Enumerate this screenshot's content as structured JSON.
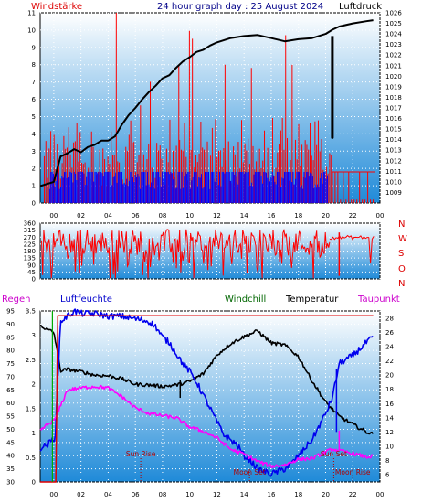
{
  "header": {
    "wind_label": "Windstärke",
    "title": "24 hour graph day : 25 August 2024",
    "pressure_label": "Luftdruck"
  },
  "direction_letters": [
    "N",
    "W",
    "S",
    "O",
    "N"
  ],
  "bottom_header": {
    "rain": "Regen",
    "humidity": "Luftfeuchte",
    "windchill": "Windchill",
    "temperature": "Temperatur",
    "dewpoint": "Taupunkt"
  },
  "events": [
    {
      "label": "Sun Rise",
      "hour": 6.4,
      "row": "upper"
    },
    {
      "label": "Moon Set",
      "hour": 14.4,
      "row": "lower"
    },
    {
      "label": "Sun Set",
      "hour": 20.6,
      "row": "upper"
    },
    {
      "label": "Moon Rise",
      "hour": 22.0,
      "row": "lower"
    }
  ],
  "colors": {
    "wind": "#ff0000",
    "wind_gust": "#0000ff",
    "pressure": "#000000",
    "direction": "#ff0000",
    "rain": "#e00000",
    "humidity": "#0000ee",
    "windchill": "#006600",
    "temperature": "#000000",
    "dewpoint": "#ff00ff",
    "plot_top": "#ffffff",
    "plot_bottom": "#1f8ad8"
  },
  "chart_data": [
    {
      "type": "line",
      "name": "wind-pressure",
      "x_ticks": [
        "00",
        "02",
        "04",
        "06",
        "08",
        "10",
        "12",
        "14",
        "16",
        "18",
        "20",
        "22",
        "00"
      ],
      "left_axis": {
        "label": "Windstärke",
        "min": 0,
        "max": 11,
        "ticks": [
          0,
          1,
          2,
          3,
          4,
          5,
          6,
          7,
          8,
          9,
          10,
          11
        ]
      },
      "right_axis": {
        "label": "Luftdruck",
        "min": 1008,
        "max": 1026,
        "ticks": [
          1009,
          1010,
          1011,
          1012,
          1013,
          1014,
          1015,
          1016,
          1017,
          1018,
          1019,
          1020,
          1021,
          1022,
          1023,
          1024,
          1025,
          1026
        ]
      },
      "series": [
        {
          "name": "Luftdruck",
          "axis": "right",
          "x": [
            -1,
            -0.5,
            0,
            0.5,
            1,
            1.5,
            2,
            2.5,
            3,
            3.5,
            4,
            4.5,
            5,
            5.5,
            6,
            6.5,
            7,
            7.5,
            8,
            8.5,
            9,
            9.5,
            10,
            10.5,
            11,
            11.5,
            12,
            13,
            14,
            15,
            16,
            17,
            18,
            19,
            20,
            20.5,
            21,
            22,
            23,
            23.5
          ],
          "y": [
            1009.6,
            1009.8,
            1010.0,
            1012.4,
            1012.7,
            1013.1,
            1012.8,
            1013.3,
            1013.5,
            1013.9,
            1013.9,
            1014.3,
            1015.4,
            1016.3,
            1017.0,
            1017.8,
            1018.5,
            1019.1,
            1019.8,
            1020.1,
            1020.8,
            1021.4,
            1021.8,
            1022.3,
            1022.5,
            1022.9,
            1023.2,
            1023.6,
            1023.8,
            1023.9,
            1023.6,
            1023.3,
            1023.5,
            1023.6,
            1024.0,
            1024.4,
            1024.7,
            1025.0,
            1025.2,
            1025.3
          ]
        },
        {
          "name": "Luftdruck-spike",
          "axis": "right",
          "x": [
            20.5,
            20.5,
            20.5
          ],
          "y": [
            1023.8,
            1014.2,
            1023.8
          ]
        }
      ]
    },
    {
      "type": "line",
      "name": "wind-direction",
      "y_axis": {
        "min": 0,
        "max": 360,
        "ticks": [
          0,
          45,
          90,
          135,
          180,
          225,
          270,
          315,
          360
        ]
      }
    },
    {
      "type": "line",
      "name": "humidity-temperature",
      "x_ticks": [
        "00",
        "02",
        "04",
        "06",
        "08",
        "10",
        "12",
        "14",
        "16",
        "18",
        "20",
        "22",
        "00"
      ],
      "humidity_axis": {
        "label": "Luftfeuchte",
        "min": 30,
        "max": 95,
        "ticks": [
          30,
          35,
          40,
          45,
          50,
          55,
          60,
          65,
          70,
          75,
          80,
          85,
          90,
          95
        ]
      },
      "rain_axis": {
        "label": "Regen",
        "min": 0,
        "max": 3.5,
        "ticks": [
          0,
          0.5,
          1,
          1.5,
          2,
          2.5,
          3,
          3.5
        ]
      },
      "temperature_axis": {
        "label": "Temperatur",
        "min": 5,
        "max": 29,
        "ticks": [
          6,
          8,
          10,
          12,
          14,
          16,
          18,
          20,
          22,
          24,
          26,
          28
        ]
      },
      "series": [
        {
          "name": "Temperatur",
          "axis": "temperature",
          "x": [
            -1,
            -0.5,
            0,
            0.2,
            0.5,
            1,
            2,
            3,
            4,
            5,
            6,
            7,
            8,
            9,
            10,
            11,
            12,
            13,
            14,
            15,
            16,
            17,
            18,
            19,
            20,
            21,
            22,
            23,
            23.5
          ],
          "y": [
            27.0,
            26.4,
            26.0,
            24.0,
            20.6,
            20.8,
            20.5,
            20.0,
            19.9,
            19.5,
            18.7,
            18.6,
            18.4,
            18.6,
            19.1,
            20.2,
            22.8,
            24.4,
            25.4,
            26.2,
            24.5,
            24.2,
            22.6,
            19.2,
            16.2,
            14.2,
            13.1,
            12.0,
            11.7
          ]
        },
        {
          "name": "Luftfeuchte",
          "axis": "humidity",
          "x": [
            -1,
            -0.5,
            -0.1,
            0.1,
            0.5,
            1,
            1.5,
            2,
            3,
            4,
            5,
            6,
            7,
            7.5,
            8,
            8.5,
            9,
            9.5,
            10,
            10.5,
            11,
            11.5,
            12,
            12.5,
            13,
            13.5,
            14,
            14.5,
            15,
            15.5,
            16,
            16.5,
            17,
            17.5,
            18,
            19,
            20,
            20.5,
            21,
            22,
            23,
            23.5
          ],
          "y": [
            43,
            44,
            46,
            47,
            91,
            93,
            95,
            94,
            94,
            93,
            93,
            92,
            91,
            89,
            85,
            83,
            79,
            75,
            72,
            68,
            63,
            58,
            53,
            48,
            46,
            44,
            40,
            38,
            35,
            34,
            33,
            34,
            35,
            37,
            40,
            46,
            56,
            62,
            75,
            78,
            83,
            85
          ]
        },
        {
          "name": "Taupunkt",
          "axis": "temperature",
          "x": [
            -1,
            -0.5,
            0,
            0.2,
            1,
            2,
            3,
            4,
            5,
            6,
            7,
            8,
            9,
            10,
            11,
            12,
            13,
            14,
            15,
            16,
            17,
            18,
            19,
            20,
            20.5,
            21,
            22,
            23,
            23.5
          ],
          "y": [
            12.2,
            13.0,
            13.6,
            14.3,
            17.9,
            18.2,
            18.4,
            18.2,
            17.0,
            15.4,
            14.6,
            14.3,
            14.0,
            12.7,
            12.1,
            11.2,
            9.6,
            8.9,
            7.9,
            7.2,
            7.4,
            8.2,
            8.3,
            9.2,
            9.6,
            9.4,
            9.0,
            8.5,
            8.6
          ]
        },
        {
          "name": "Regen",
          "axis": "rain",
          "x": [
            -1,
            0,
            0.15,
            0.3,
            0.8,
            23.5
          ],
          "y": [
            0,
            0,
            0,
            3.4,
            3.4,
            3.4
          ]
        }
      ]
    }
  ]
}
